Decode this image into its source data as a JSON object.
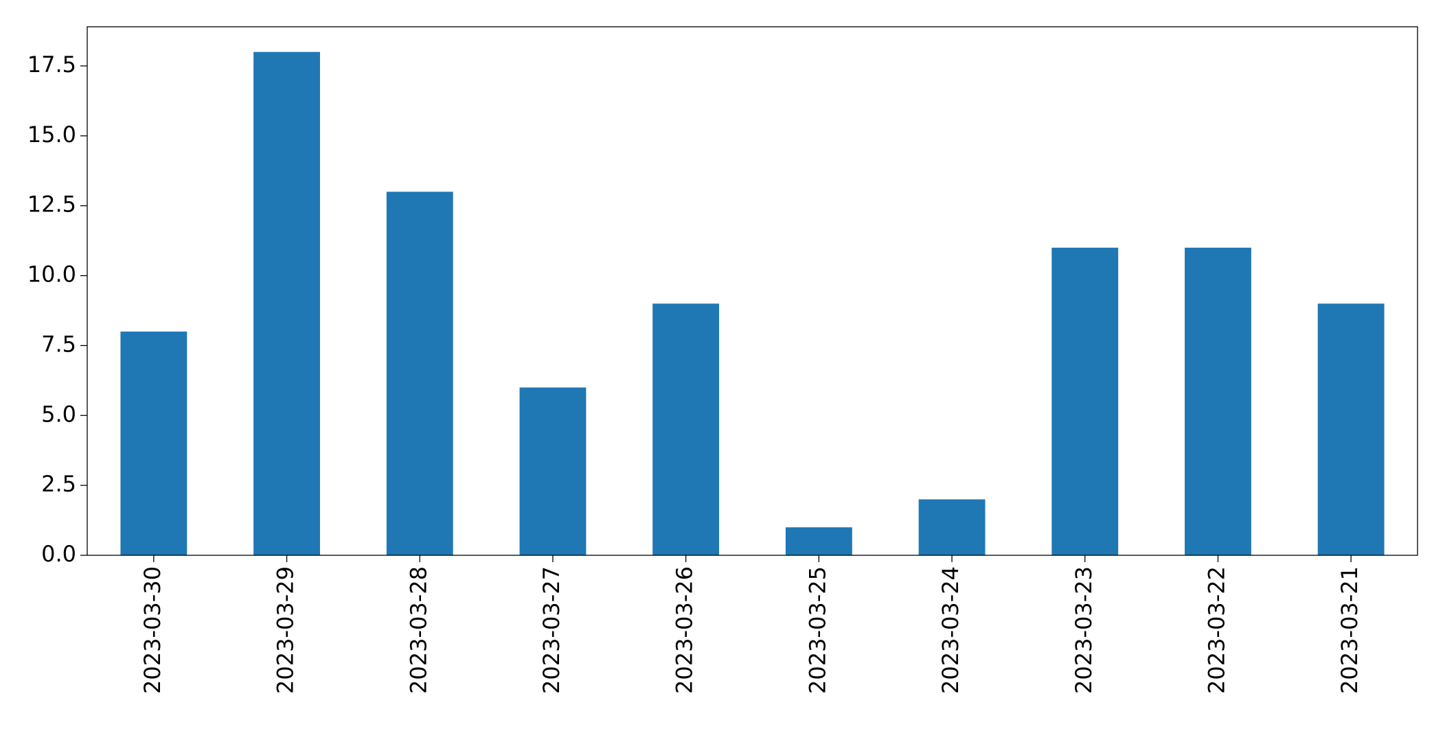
{
  "chart_data": {
    "type": "bar",
    "categories": [
      "2023-03-30",
      "2023-03-29",
      "2023-03-28",
      "2023-03-27",
      "2023-03-26",
      "2023-03-25",
      "2023-03-24",
      "2023-03-23",
      "2023-03-22",
      "2023-03-21"
    ],
    "values": [
      8,
      18,
      13,
      6,
      9,
      1,
      2,
      11,
      11,
      9
    ],
    "color": "#1f77b4",
    "ylim": [
      0,
      18.9
    ],
    "yticks": [
      {
        "value": 0,
        "label": "0.0"
      },
      {
        "value": 2.5,
        "label": "2.5"
      },
      {
        "value": 5,
        "label": "5.0"
      },
      {
        "value": 7.5,
        "label": "7.5"
      },
      {
        "value": 10,
        "label": "10.0"
      },
      {
        "value": 12.5,
        "label": "12.5"
      },
      {
        "value": 15,
        "label": "15.0"
      },
      {
        "value": 17.5,
        "label": "17.5"
      }
    ],
    "grid": false
  }
}
